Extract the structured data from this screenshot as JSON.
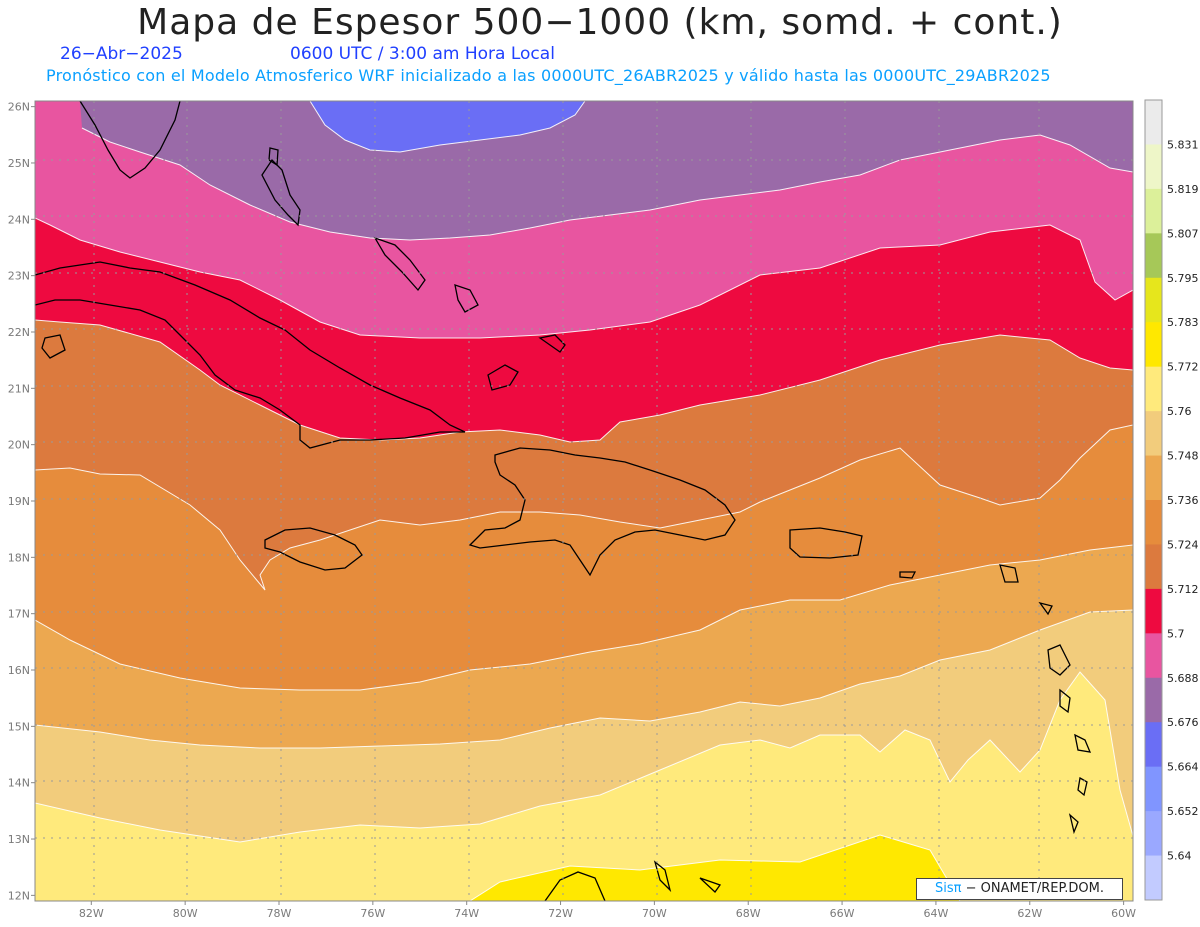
{
  "title": "Mapa de Espesor 500−1000 (km, somd. + cont.)",
  "date": "26−Abr−2025",
  "time": "0600 UTC / 3:00 am Hora Local",
  "subtitle": "Pronóstico con el Modelo Atmosferico WRF inicializado a las 0000UTC_26ABR2025 y válido hasta las  0000UTC_29ABR2025",
  "credit": {
    "brand": "Sisπ",
    "text": "− ONAMET/REP.DOM."
  },
  "colors": {
    "band_5652": "#9aa8ff",
    "band_5664": "#6a6ef5",
    "band_5676": "#9a6aa8",
    "band_5688": "#e855a0",
    "band_5700": "#ee0a40",
    "band_5712": "#dc7a3e",
    "band_5724": "#e68c3c",
    "band_5736": "#eca850",
    "band_5748": "#f2cc7c",
    "band_5760": "#ffea7c",
    "band_5772": "#ffe800"
  },
  "chart_data": {
    "type": "map-filled-contour",
    "lon_range": [
      -83.2,
      -59.8
    ],
    "lat_range": [
      11.9,
      26.1
    ],
    "lon_ticks": [
      "82W",
      "80W",
      "78W",
      "76W",
      "74W",
      "72W",
      "70W",
      "68W",
      "66W",
      "64W",
      "62W",
      "60W"
    ],
    "lat_ticks": [
      "26N",
      "25N",
      "24N",
      "23N",
      "22N",
      "21N",
      "20N",
      "19N",
      "18N",
      "17N",
      "16N",
      "15N",
      "14N",
      "13N",
      "12N"
    ],
    "colorbar": {
      "levels": [
        "5.64",
        "5.652",
        "5.664",
        "5.676",
        "5.688",
        "5.7",
        "5.712",
        "5.724",
        "5.736",
        "5.748",
        "5.76",
        "5.772",
        "5.783",
        "5.795",
        "5.807",
        "5.819",
        "5.831"
      ],
      "colors": [
        "#c2cbff",
        "#9aa8ff",
        "#8095ff",
        "#6a6ef5",
        "#9a6aa8",
        "#e855a0",
        "#ee0a40",
        "#dc7a3e",
        "#e68c3c",
        "#eca850",
        "#f2cc7c",
        "#ffea7c",
        "#ffe800",
        "#e6e61c",
        "#a6c858",
        "#dcf09a",
        "#eef6c8",
        "#ebebeb"
      ]
    }
  }
}
